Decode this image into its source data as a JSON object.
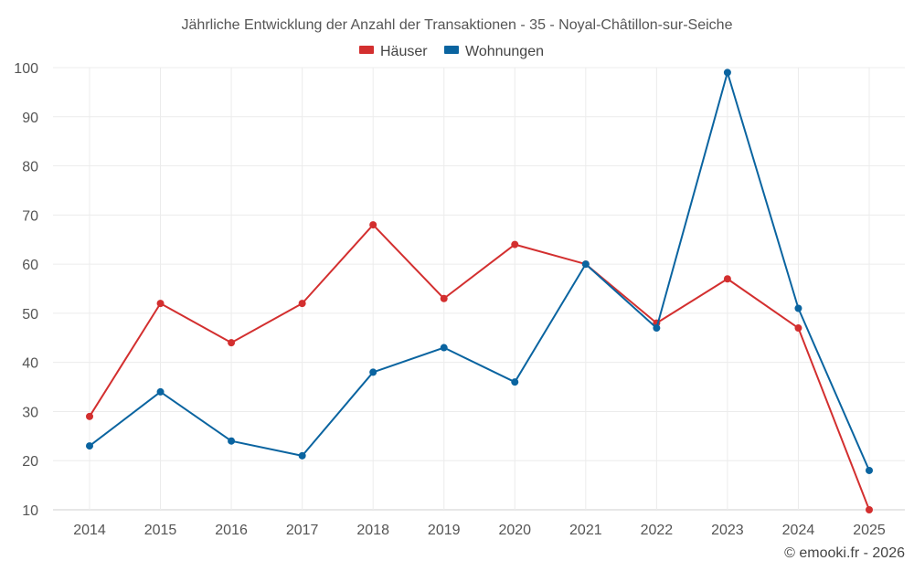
{
  "chart_data": {
    "type": "line",
    "title": "Jährliche Entwicklung der Anzahl der Transaktionen - 35 - Noyal-Châtillon-sur-Seiche",
    "categories": [
      "2014",
      "2015",
      "2016",
      "2017",
      "2018",
      "2019",
      "2020",
      "2021",
      "2022",
      "2023",
      "2024",
      "2025"
    ],
    "series": [
      {
        "name": "Häuser",
        "color": "#d32f2f",
        "values": [
          29,
          52,
          44,
          52,
          68,
          53,
          64,
          60,
          48,
          57,
          47,
          10
        ]
      },
      {
        "name": "Wohnungen",
        "color": "#0a64a0",
        "values": [
          23,
          34,
          24,
          21,
          38,
          43,
          36,
          60,
          47,
          99,
          51,
          18
        ]
      }
    ],
    "ylim": [
      10,
      100
    ],
    "yticks": [
      "10",
      "20",
      "30",
      "40",
      "50",
      "60",
      "70",
      "80",
      "90",
      "100"
    ],
    "grid": true,
    "legend_position": "top-center",
    "xlabel": "",
    "ylabel": ""
  },
  "credit": "© emooki.fr - 2026"
}
